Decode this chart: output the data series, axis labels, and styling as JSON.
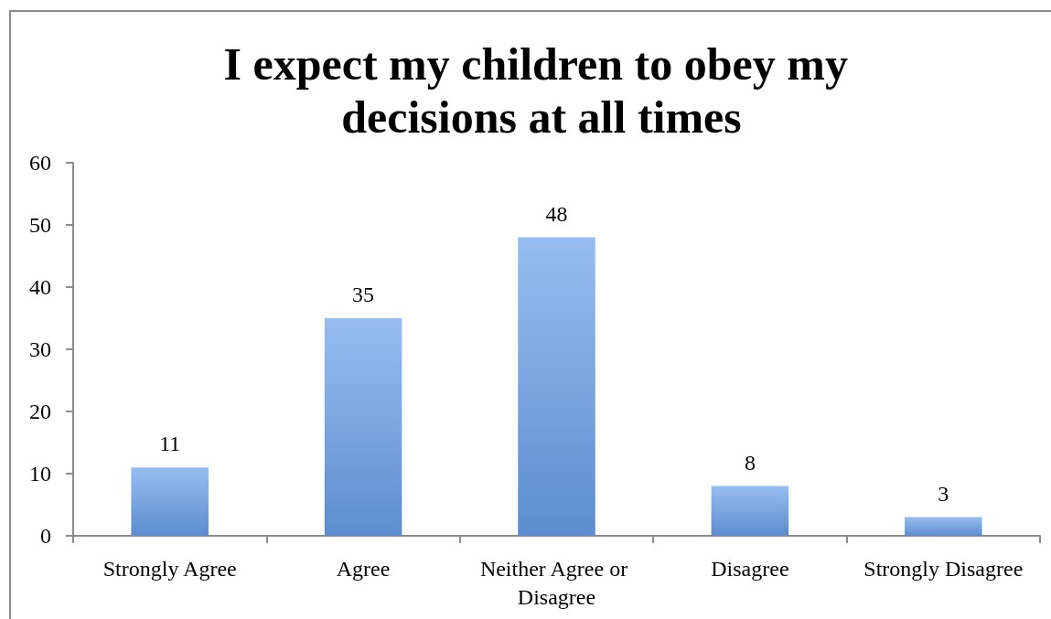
{
  "chart_data": {
    "type": "bar",
    "title": "I expect my children to obey my decisions at all times",
    "categories": [
      "Strongly Agree",
      "Agree",
      "Neither Agree or Disagree",
      "Disagree",
      "Strongly Disagree"
    ],
    "values": [
      11,
      35,
      48,
      8,
      3
    ],
    "color": "#6aa0ea",
    "ylim": [
      0,
      60
    ],
    "yticks": [
      0,
      10,
      20,
      30,
      40,
      50,
      60
    ],
    "data_labels": true
  }
}
